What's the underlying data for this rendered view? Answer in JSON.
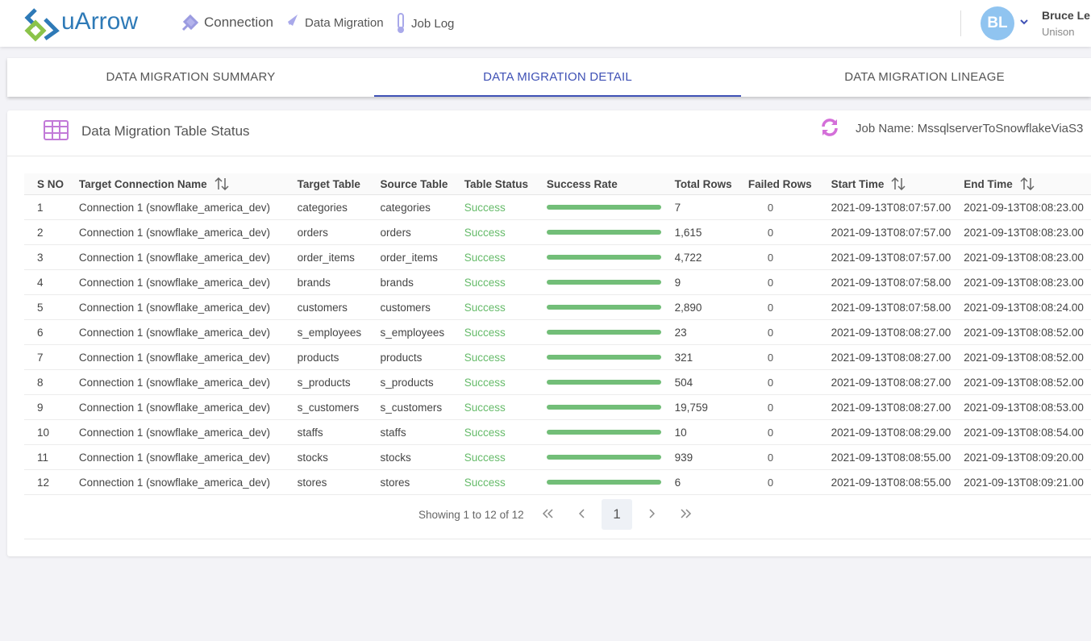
{
  "header": {
    "logo": "uArrow",
    "nav": [
      "Connection",
      "Data Migration",
      "Job Log"
    ],
    "user": {
      "initials": "BL",
      "name": "Bruce Le",
      "org": "Unison"
    }
  },
  "tabs": {
    "items": [
      "DATA MIGRATION SUMMARY",
      "DATA MIGRATION DETAIL",
      "DATA MIGRATION LINEAGE"
    ],
    "active": 1
  },
  "panel": {
    "title": "Data Migration Table Status",
    "job": "Job Name: MssqlserverToSnowflakeViaS3"
  },
  "table": {
    "columns": [
      "S NO",
      "Target Connection Name",
      "Target Table",
      "Source Table",
      "Table Status",
      "Success Rate",
      "Total Rows",
      "Failed Rows",
      "Start Time",
      "End Time"
    ],
    "sortable": [
      false,
      true,
      false,
      false,
      false,
      false,
      false,
      false,
      true,
      true
    ],
    "rows": [
      [
        "1",
        "Connection 1 (snowflake_america_dev)",
        "categories",
        "categories",
        "Success",
        100,
        "7",
        "0",
        "2021-09-13T08:07:57.00",
        "2021-09-13T08:08:23.00"
      ],
      [
        "2",
        "Connection 1 (snowflake_america_dev)",
        "orders",
        "orders",
        "Success",
        100,
        "1,615",
        "0",
        "2021-09-13T08:07:57.00",
        "2021-09-13T08:08:23.00"
      ],
      [
        "3",
        "Connection 1 (snowflake_america_dev)",
        "order_items",
        "order_items",
        "Success",
        100,
        "4,722",
        "0",
        "2021-09-13T08:07:57.00",
        "2021-09-13T08:08:23.00"
      ],
      [
        "4",
        "Connection 1 (snowflake_america_dev)",
        "brands",
        "brands",
        "Success",
        100,
        "9",
        "0",
        "2021-09-13T08:07:58.00",
        "2021-09-13T08:08:23.00"
      ],
      [
        "5",
        "Connection 1 (snowflake_america_dev)",
        "customers",
        "customers",
        "Success",
        100,
        "2,890",
        "0",
        "2021-09-13T08:07:58.00",
        "2021-09-13T08:08:24.00"
      ],
      [
        "6",
        "Connection 1 (snowflake_america_dev)",
        "s_employees",
        "s_employees",
        "Success",
        100,
        "23",
        "0",
        "2021-09-13T08:08:27.00",
        "2021-09-13T08:08:52.00"
      ],
      [
        "7",
        "Connection 1 (snowflake_america_dev)",
        "products",
        "products",
        "Success",
        100,
        "321",
        "0",
        "2021-09-13T08:08:27.00",
        "2021-09-13T08:08:52.00"
      ],
      [
        "8",
        "Connection 1 (snowflake_america_dev)",
        "s_products",
        "s_products",
        "Success",
        100,
        "504",
        "0",
        "2021-09-13T08:08:27.00",
        "2021-09-13T08:08:52.00"
      ],
      [
        "9",
        "Connection 1 (snowflake_america_dev)",
        "s_customers",
        "s_customers",
        "Success",
        100,
        "19,759",
        "0",
        "2021-09-13T08:08:27.00",
        "2021-09-13T08:08:53.00"
      ],
      [
        "10",
        "Connection 1 (snowflake_america_dev)",
        "staffs",
        "staffs",
        "Success",
        100,
        "10",
        "0",
        "2021-09-13T08:08:29.00",
        "2021-09-13T08:08:54.00"
      ],
      [
        "11",
        "Connection 1 (snowflake_america_dev)",
        "stocks",
        "stocks",
        "Success",
        100,
        "939",
        "0",
        "2021-09-13T08:08:55.00",
        "2021-09-13T08:09:20.00"
      ],
      [
        "12",
        "Connection 1 (snowflake_america_dev)",
        "stores",
        "stores",
        "Success",
        100,
        "6",
        "0",
        "2021-09-13T08:08:55.00",
        "2021-09-13T08:09:21.00"
      ]
    ]
  },
  "pagination": {
    "summary": "Showing 1 to 12 of 12",
    "page": "1"
  }
}
